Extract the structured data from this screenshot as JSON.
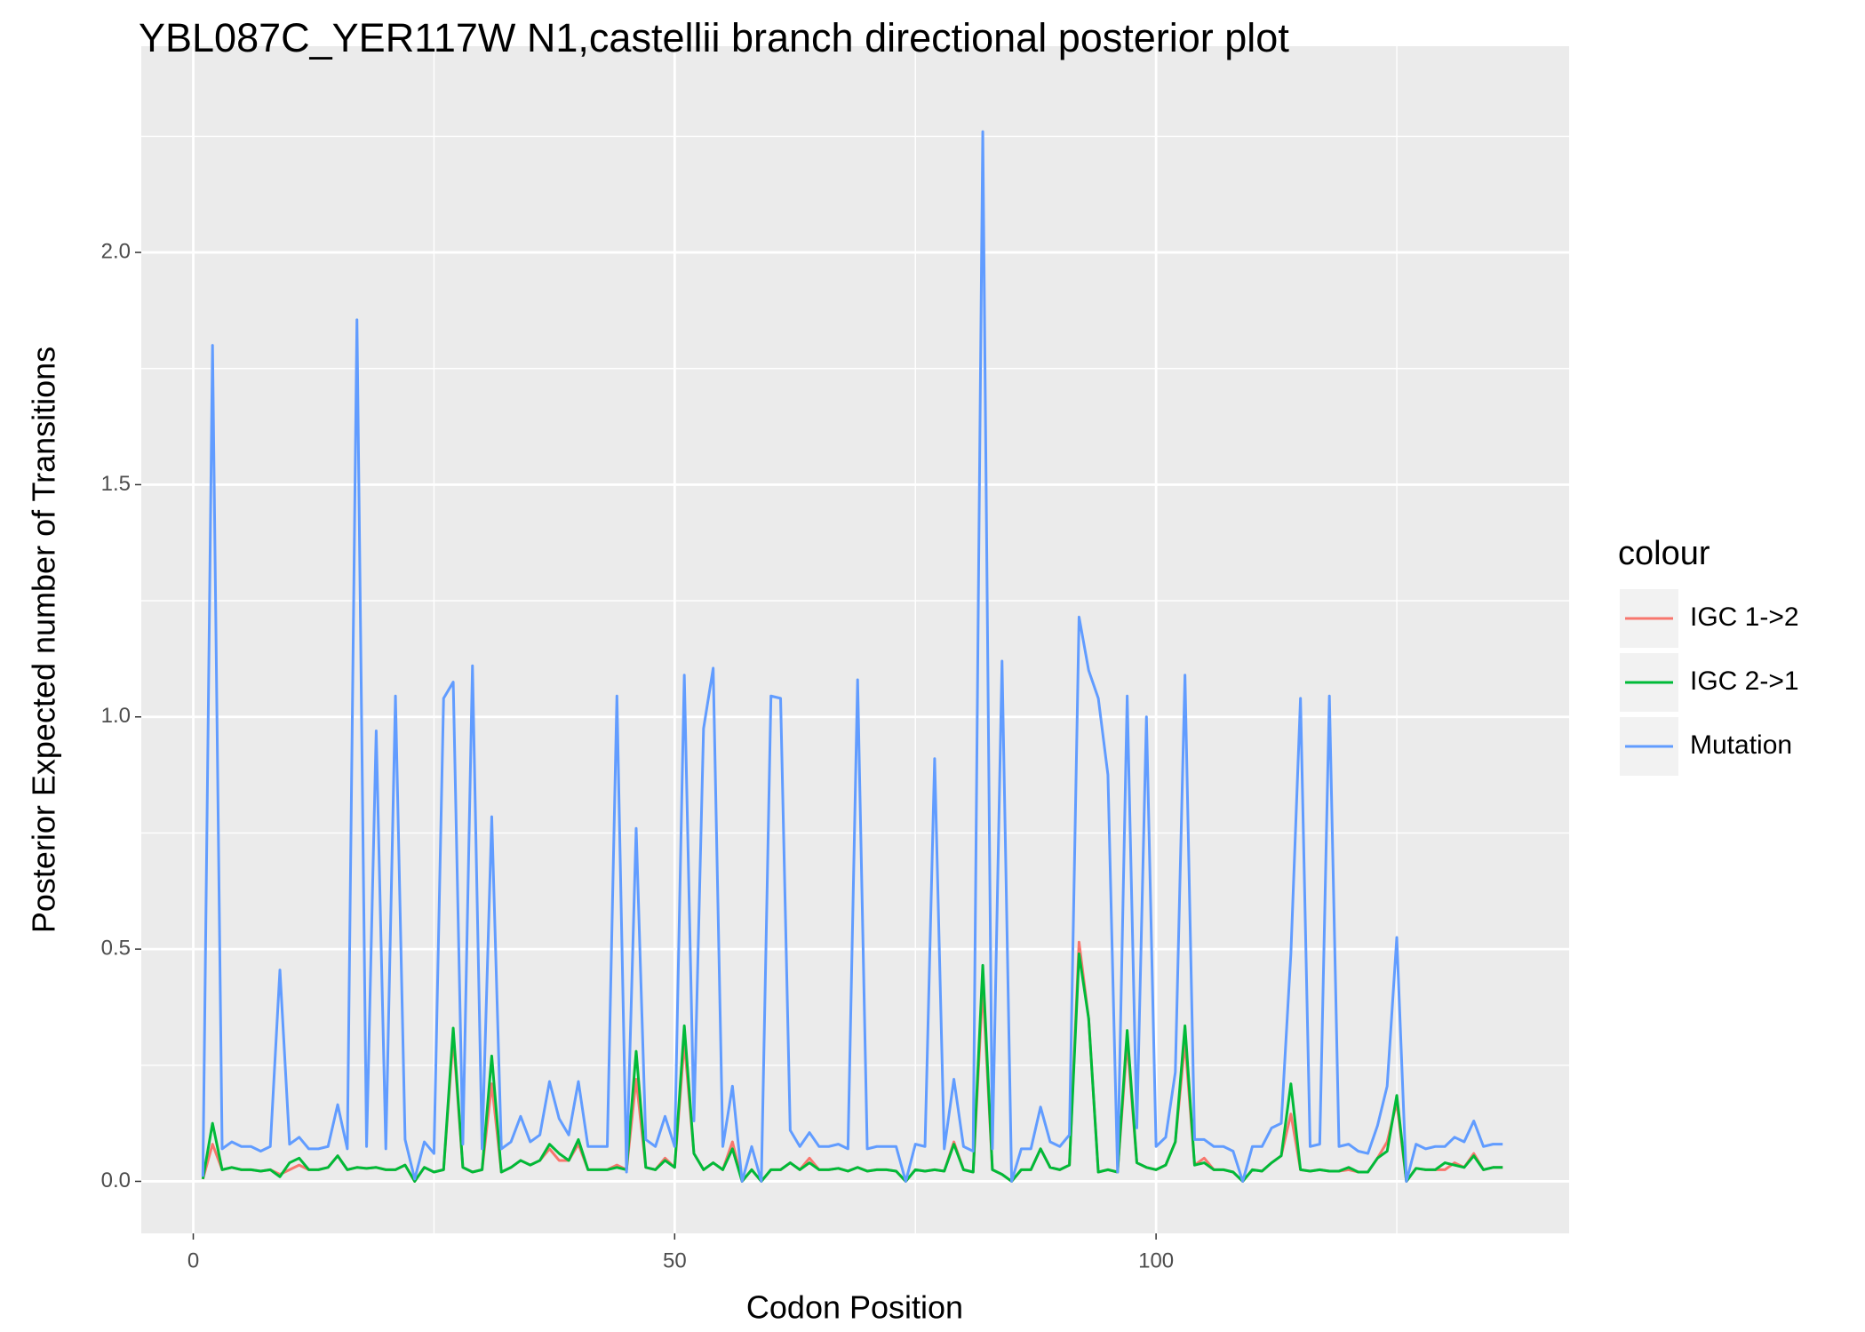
{
  "chart_data": {
    "type": "line",
    "title": "YBL087C_YER117W N1,castellii branch directional posterior plot",
    "x_label": "Codon Position",
    "y_label": "Posterior Expected number of Transitions",
    "legend_title": "colour",
    "legend_position": "right",
    "grid": true,
    "xlim": [
      -5.4,
      142.9
    ],
    "ylim": [
      -0.112,
      2.444
    ],
    "xticks": [
      0,
      50,
      100
    ],
    "yticks": [
      {
        "value": 0,
        "label": "0.0"
      },
      {
        "value": 0.5,
        "label": "0.5"
      },
      {
        "value": 1,
        "label": "1.0"
      },
      {
        "value": 1.5,
        "label": "1.5"
      },
      {
        "value": 2,
        "label": "2.0"
      }
    ],
    "x_minor_ticks": [
      25,
      75,
      125
    ],
    "y_minor_ticks": [
      0.25,
      0.75,
      1.25,
      1.75,
      2.25
    ],
    "x": [
      1,
      2,
      3,
      4,
      5,
      6,
      7,
      8,
      9,
      10,
      11,
      12,
      13,
      14,
      15,
      16,
      17,
      18,
      19,
      20,
      21,
      22,
      23,
      24,
      25,
      26,
      27,
      28,
      29,
      30,
      31,
      32,
      33,
      34,
      35,
      36,
      37,
      38,
      39,
      40,
      41,
      42,
      43,
      44,
      45,
      46,
      47,
      48,
      49,
      50,
      51,
      52,
      53,
      54,
      55,
      56,
      57,
      58,
      59,
      60,
      61,
      62,
      63,
      64,
      65,
      66,
      67,
      68,
      69,
      70,
      71,
      72,
      73,
      74,
      75,
      76,
      77,
      78,
      79,
      80,
      81,
      82,
      83,
      84,
      85,
      86,
      87,
      88,
      89,
      90,
      91,
      92,
      93,
      94,
      95,
      96,
      97,
      98,
      99,
      100,
      101,
      102,
      103,
      104,
      105,
      106,
      107,
      108,
      109,
      110,
      111,
      112,
      113,
      114,
      115,
      116,
      117,
      118,
      119,
      120,
      121,
      122,
      123,
      124,
      125,
      126,
      127,
      128,
      129,
      130,
      131,
      132,
      133,
      134,
      135,
      136
    ],
    "series": [
      {
        "name": "IGC 1->2",
        "color": "#f8766d",
        "values": [
          0.005,
          0.08,
          0.025,
          0.03,
          0.025,
          0.025,
          0.022,
          0.025,
          0.015,
          0.025,
          0.035,
          0.025,
          0.025,
          0.03,
          0.055,
          0.025,
          0.03,
          0.028,
          0.03,
          0.025,
          0.025,
          0.035,
          0.0,
          0.03,
          0.02,
          0.025,
          0.31,
          0.03,
          0.02,
          0.025,
          0.21,
          0.02,
          0.03,
          0.045,
          0.035,
          0.045,
          0.07,
          0.045,
          0.045,
          0.08,
          0.025,
          0.025,
          0.025,
          0.035,
          0.025,
          0.22,
          0.03,
          0.025,
          0.05,
          0.03,
          0.3,
          0.06,
          0.025,
          0.04,
          0.025,
          0.085,
          0.0,
          0.025,
          0.0,
          0.025,
          0.025,
          0.04,
          0.025,
          0.05,
          0.025,
          0.025,
          0.028,
          0.022,
          0.03,
          0.022,
          0.025,
          0.025,
          0.022,
          0.0,
          0.025,
          0.022,
          0.025,
          0.022,
          0.085,
          0.025,
          0.02,
          0.42,
          0.025,
          0.015,
          0.0,
          0.025,
          0.025,
          0.07,
          0.03,
          0.025,
          0.035,
          0.515,
          0.35,
          0.02,
          0.025,
          0.02,
          0.3,
          0.04,
          0.03,
          0.025,
          0.035,
          0.085,
          0.3,
          0.035,
          0.05,
          0.025,
          0.025,
          0.02,
          0.0,
          0.025,
          0.022,
          0.04,
          0.055,
          0.145,
          0.025,
          0.022,
          0.025,
          0.022,
          0.022,
          0.025,
          0.02,
          0.02,
          0.05,
          0.085,
          0.17,
          0.0,
          0.028,
          0.025,
          0.025,
          0.025,
          0.04,
          0.03,
          0.06,
          0.025,
          0.03,
          0.03
        ]
      },
      {
        "name": "IGC 2->1",
        "color": "#00ba38",
        "values": [
          0.005,
          0.125,
          0.025,
          0.03,
          0.025,
          0.025,
          0.022,
          0.025,
          0.01,
          0.04,
          0.05,
          0.025,
          0.025,
          0.03,
          0.055,
          0.025,
          0.03,
          0.028,
          0.03,
          0.025,
          0.025,
          0.035,
          0.0,
          0.03,
          0.02,
          0.025,
          0.33,
          0.03,
          0.02,
          0.025,
          0.27,
          0.02,
          0.03,
          0.045,
          0.035,
          0.045,
          0.08,
          0.06,
          0.045,
          0.09,
          0.025,
          0.025,
          0.025,
          0.03,
          0.025,
          0.28,
          0.03,
          0.025,
          0.045,
          0.03,
          0.335,
          0.06,
          0.025,
          0.04,
          0.025,
          0.07,
          0.0,
          0.025,
          0.0,
          0.025,
          0.025,
          0.04,
          0.025,
          0.04,
          0.025,
          0.025,
          0.028,
          0.022,
          0.03,
          0.022,
          0.025,
          0.025,
          0.022,
          0.0,
          0.025,
          0.022,
          0.025,
          0.022,
          0.08,
          0.025,
          0.02,
          0.465,
          0.025,
          0.015,
          0.0,
          0.025,
          0.025,
          0.07,
          0.03,
          0.025,
          0.035,
          0.49,
          0.35,
          0.02,
          0.025,
          0.02,
          0.325,
          0.04,
          0.03,
          0.025,
          0.035,
          0.085,
          0.335,
          0.035,
          0.04,
          0.025,
          0.025,
          0.02,
          0.0,
          0.025,
          0.022,
          0.04,
          0.055,
          0.21,
          0.025,
          0.022,
          0.025,
          0.022,
          0.022,
          0.03,
          0.02,
          0.02,
          0.05,
          0.065,
          0.185,
          0.0,
          0.028,
          0.025,
          0.025,
          0.04,
          0.035,
          0.03,
          0.055,
          0.025,
          0.03,
          0.03
        ]
      },
      {
        "name": "Mutation",
        "color": "#619cff",
        "values": [
          0.01,
          1.8,
          0.07,
          0.085,
          0.075,
          0.075,
          0.065,
          0.075,
          0.455,
          0.08,
          0.095,
          0.07,
          0.07,
          0.075,
          0.165,
          0.07,
          1.855,
          0.075,
          0.97,
          0.07,
          1.045,
          0.09,
          0.005,
          0.085,
          0.06,
          1.04,
          1.075,
          0.08,
          1.11,
          0.07,
          0.785,
          0.07,
          0.085,
          0.14,
          0.085,
          0.1,
          0.215,
          0.135,
          0.1,
          0.215,
          0.075,
          0.075,
          0.075,
          1.045,
          0.02,
          0.76,
          0.09,
          0.075,
          0.14,
          0.075,
          1.09,
          0.13,
          0.975,
          1.105,
          0.075,
          0.205,
          0.0,
          0.075,
          0.0,
          1.045,
          1.04,
          0.11,
          0.075,
          0.105,
          0.075,
          0.075,
          0.08,
          0.07,
          1.08,
          0.07,
          0.075,
          0.075,
          0.075,
          0.0,
          0.08,
          0.075,
          0.91,
          0.07,
          0.22,
          0.075,
          0.065,
          2.26,
          0.07,
          1.12,
          0.0,
          0.07,
          0.07,
          0.16,
          0.085,
          0.075,
          0.1,
          1.215,
          1.1,
          1.04,
          0.875,
          0.02,
          1.045,
          0.115,
          1.0,
          0.075,
          0.095,
          0.235,
          1.09,
          0.09,
          0.09,
          0.075,
          0.075,
          0.065,
          0.0,
          0.075,
          0.075,
          0.115,
          0.125,
          0.49,
          1.04,
          0.075,
          0.08,
          1.045,
          0.075,
          0.08,
          0.065,
          0.06,
          0.12,
          0.205,
          0.525,
          0.0,
          0.08,
          0.07,
          0.075,
          0.075,
          0.095,
          0.085,
          0.13,
          0.075,
          0.08,
          0.08
        ]
      }
    ]
  }
}
